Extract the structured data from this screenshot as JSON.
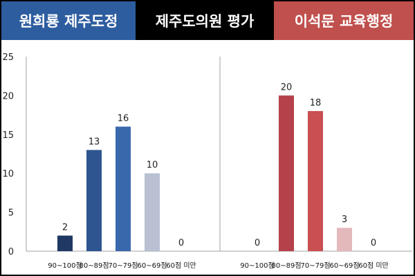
{
  "header": {
    "left_title": "원희룡 제주도정",
    "left_color": "#2e5d9f",
    "mid_title": "제주도의원 평가",
    "mid_color": "#000000",
    "right_title": "이석문 교육행정",
    "right_color": "#c0504d"
  },
  "chart_data": [
    {
      "type": "bar",
      "title": "",
      "categories": [
        "90~100점",
        "80~89점",
        "70~79점",
        "60~69점",
        "60점 미만"
      ],
      "values": [
        2,
        13,
        16,
        10,
        0
      ],
      "colors": [
        "#1f3864",
        "#2e5590",
        "#3a68ad",
        "#b8c0d2",
        "#dde3ec"
      ],
      "ylim": [
        0,
        25
      ],
      "yticks": [
        0,
        5,
        10,
        15,
        20,
        25
      ],
      "xlabel": "",
      "ylabel": ""
    },
    {
      "type": "bar",
      "title": "",
      "categories": [
        "90~100점",
        "80~89점",
        "70~79점",
        "60~69점",
        "60점 미만"
      ],
      "values": [
        0,
        20,
        18,
        3,
        0
      ],
      "colors": [
        "#b03a3a",
        "#b5414b",
        "#c94f52",
        "#e4b9bc",
        "#f1d8da"
      ],
      "ylim": [
        0,
        25
      ],
      "xlabel": "",
      "ylabel": ""
    }
  ]
}
